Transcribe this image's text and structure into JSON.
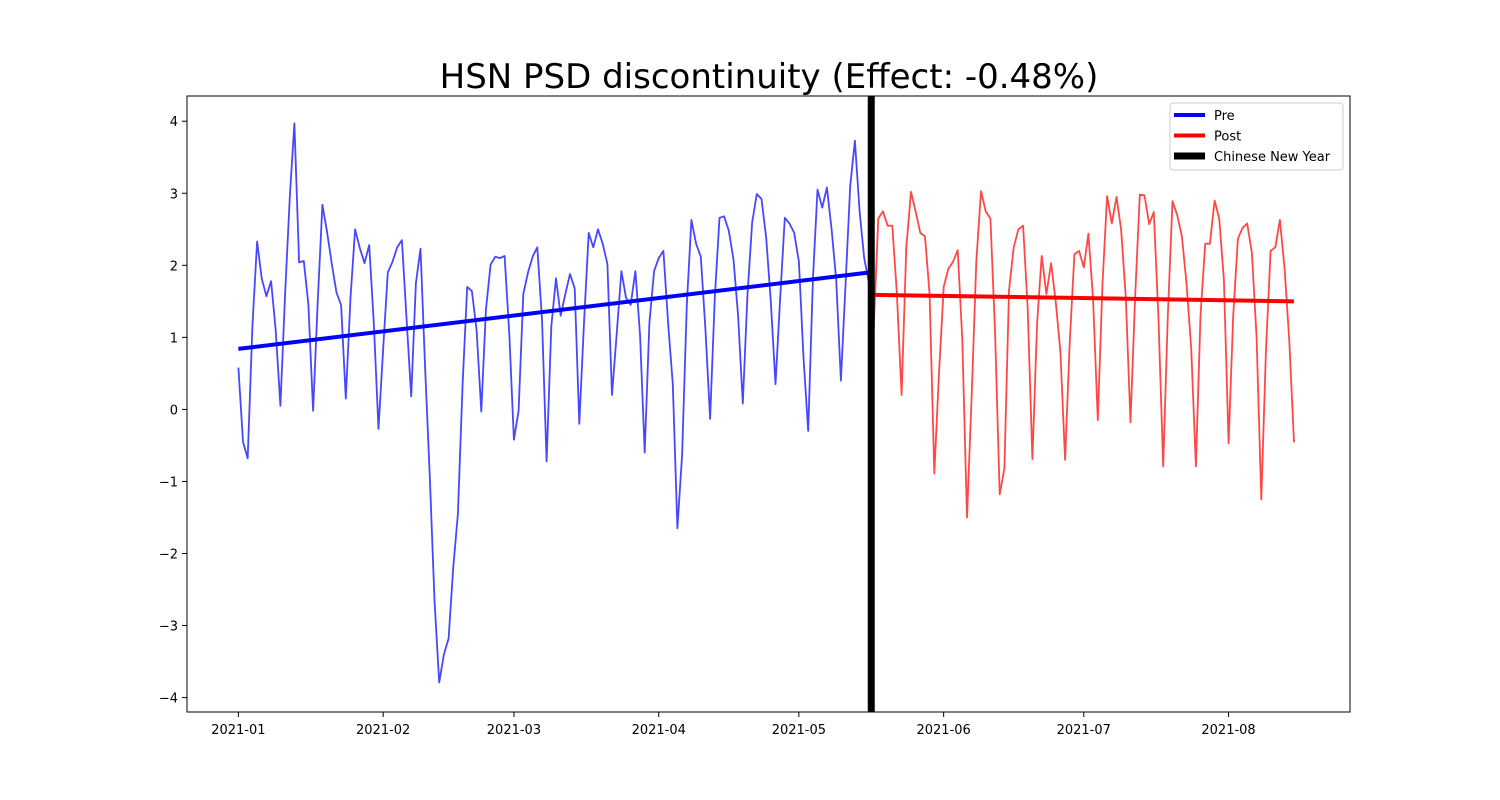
{
  "chart_data": {
    "type": "line",
    "title": "HSN PSD discontinuity (Effect: -0.48%)",
    "xlabel": "",
    "ylabel": "",
    "x_start_date": "2021-01-01",
    "x_tick_labels": [
      "2021-01",
      "2021-02",
      "2021-03",
      "2021-04",
      "2021-05",
      "2021-06",
      "2021-07",
      "2021-08"
    ],
    "x_tick_days": [
      0,
      31,
      59,
      90,
      120,
      151,
      181,
      212
    ],
    "xlim_days": [
      -11,
      238
    ],
    "ylim": [
      -4.2,
      4.35
    ],
    "y_ticks": [
      -4,
      -3,
      -2,
      -1,
      0,
      1,
      2,
      3,
      4
    ],
    "legend_position": "top-right",
    "cutoff": {
      "name": "Chinese New Year",
      "day": 135.5,
      "color": "#000000"
    },
    "colors": {
      "pre": "#0000ff",
      "post": "#ff0000",
      "cutoff": "#000000"
    },
    "legend": [
      {
        "label": "Pre",
        "color": "#0000ff"
      },
      {
        "label": "Post",
        "color": "#ff0000"
      },
      {
        "label": "Chinese New Year",
        "color": "#000000"
      }
    ],
    "series": [
      {
        "name": "Pre",
        "start_day": 0,
        "values": [
          0.58,
          -0.45,
          -0.68,
          1.15,
          2.33,
          1.82,
          1.57,
          1.78,
          1.1,
          0.05,
          1.6,
          2.95,
          3.97,
          2.04,
          2.06,
          1.45,
          -0.02,
          1.52,
          2.84,
          2.46,
          2.02,
          1.62,
          1.45,
          0.15,
          1.55,
          2.5,
          2.24,
          2.03,
          2.28,
          1.2,
          -0.27,
          0.85,
          1.9,
          2.05,
          2.25,
          2.35,
          1.27,
          0.18,
          1.75,
          2.23,
          0.55,
          -0.97,
          -2.65,
          -3.79,
          -3.4,
          -3.18,
          -2.2,
          -1.45,
          0.35,
          1.7,
          1.64,
          1.1,
          -0.03,
          1.38,
          2.01,
          2.12,
          2.1,
          2.13,
          1.05,
          -0.42,
          -0.02,
          1.6,
          1.9,
          2.12,
          2.25,
          1.25,
          -0.72,
          1.15,
          1.82,
          1.3,
          1.6,
          1.88,
          1.68,
          -0.2,
          1.2,
          2.45,
          2.25,
          2.5,
          2.3,
          2.02,
          0.2,
          1.05,
          1.92,
          1.55,
          1.45,
          1.92,
          1.02,
          -0.6,
          1.2,
          1.92,
          2.1,
          2.2,
          1.2,
          0.35,
          -1.65,
          -0.63,
          1.45,
          2.63,
          2.3,
          2.12,
          1.12,
          -0.13,
          1.55,
          2.66,
          2.68,
          2.48,
          2.08,
          1.3,
          0.08,
          1.6,
          2.6,
          2.99,
          2.92,
          2.38,
          1.5,
          0.35,
          1.55,
          2.66,
          2.58,
          2.45,
          2.05,
          0.72,
          -0.3,
          1.8,
          3.05,
          2.8,
          3.08,
          2.5,
          1.8,
          0.4,
          1.75,
          3.1,
          3.73,
          2.75,
          2.1,
          1.76
        ],
        "trend": {
          "start": 0.84,
          "end": 1.9
        }
      },
      {
        "name": "Post",
        "start_day": 136,
        "values": [
          1.1,
          2.65,
          2.75,
          2.55,
          2.55,
          1.6,
          0.2,
          2.25,
          3.02,
          2.75,
          2.45,
          2.4,
          1.6,
          -0.89,
          0.5,
          1.7,
          1.95,
          2.05,
          2.21,
          0.97,
          -1.5,
          0.2,
          2.05,
          3.03,
          2.75,
          2.65,
          1.1,
          -1.18,
          -0.82,
          1.65,
          2.25,
          2.5,
          2.55,
          1.4,
          -0.69,
          1.2,
          2.13,
          1.6,
          2.03,
          1.5,
          0.8,
          -0.7,
          0.95,
          2.15,
          2.2,
          1.97,
          2.44,
          1.52,
          -0.15,
          1.75,
          2.96,
          2.58,
          2.95,
          2.5,
          1.55,
          -0.18,
          1.55,
          2.98,
          2.97,
          2.57,
          2.74,
          1.25,
          -0.79,
          1.3,
          2.89,
          2.7,
          2.4,
          1.75,
          0.85,
          -0.79,
          1.3,
          2.3,
          2.3,
          2.9,
          2.65,
          1.8,
          -0.47,
          1.3,
          2.37,
          2.52,
          2.58,
          2.17,
          1.0,
          -1.25,
          0.8,
          2.2,
          2.25,
          2.63,
          1.95,
          0.95,
          -0.46
        ],
        "trend": {
          "start": 1.59,
          "end": 1.5
        }
      }
    ]
  }
}
